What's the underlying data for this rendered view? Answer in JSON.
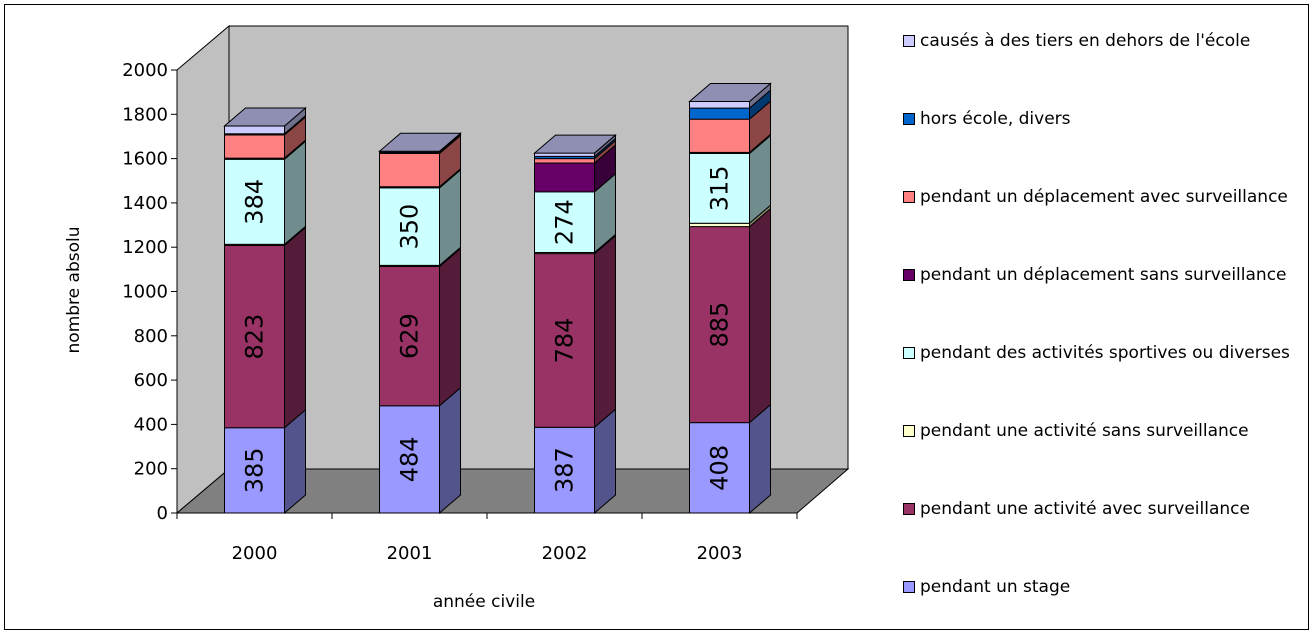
{
  "chart_data": {
    "type": "bar",
    "stacked": true,
    "three_d": true,
    "xlabel": "année civile",
    "ylabel": "nombre absolu",
    "ylim": [
      0,
      2000
    ],
    "yticks": [
      0,
      200,
      400,
      600,
      800,
      1000,
      1200,
      1400,
      1600,
      1800,
      2000
    ],
    "grid": false,
    "legend_position": "right",
    "categories": [
      "2000",
      "2001",
      "2002",
      "2003"
    ],
    "series": [
      {
        "name": "pendant un stage",
        "color": "#9999ff",
        "values": [
          385,
          484,
          387,
          408
        ],
        "labels": [
          "385",
          "484",
          "387",
          "408"
        ]
      },
      {
        "name": "pendant une activité avec surveillance",
        "color": "#993366",
        "values": [
          823,
          629,
          784,
          885
        ],
        "labels": [
          "823",
          "629",
          "784",
          "885"
        ]
      },
      {
        "name": "pendant une activité sans surveillance",
        "color": "#ffffcc",
        "values": [
          5,
          5,
          5,
          15
        ],
        "labels": [
          "",
          "",
          "",
          ""
        ]
      },
      {
        "name": "pendant des activités sportives ou diverses",
        "color": "#ccffff",
        "values": [
          384,
          350,
          274,
          315
        ],
        "labels": [
          "384",
          "350",
          "274",
          "315"
        ]
      },
      {
        "name": "pendant un déplacement sans surveillance",
        "color": "#660066",
        "values": [
          5,
          5,
          130,
          5
        ],
        "labels": [
          "",
          "",
          "",
          ""
        ]
      },
      {
        "name": "pendant un déplacement avec surveillance",
        "color": "#ff8080",
        "values": [
          105,
          150,
          20,
          150
        ],
        "labels": [
          "",
          "",
          "",
          ""
        ]
      },
      {
        "name": "hors école, divers",
        "color": "#0066cc",
        "values": [
          5,
          5,
          10,
          50
        ],
        "labels": [
          "",
          "",
          "",
          ""
        ]
      },
      {
        "name": "causés à des tiers en dehors de l'école",
        "color": "#ccccff",
        "values": [
          35,
          5,
          15,
          30
        ],
        "labels": [
          "",
          "",
          "",
          ""
        ]
      }
    ],
    "legend_order": [
      "causés à des tiers en dehors de l'école",
      "hors école, divers",
      "pendant un déplacement avec surveillance",
      "pendant un déplacement sans surveillance",
      "pendant des activités sportives ou diverses",
      "pendant une activité sans surveillance",
      "pendant une activité avec surveillance",
      "pendant un stage"
    ],
    "wall_color": "#c0c0c0",
    "floor_color": "#808080"
  }
}
